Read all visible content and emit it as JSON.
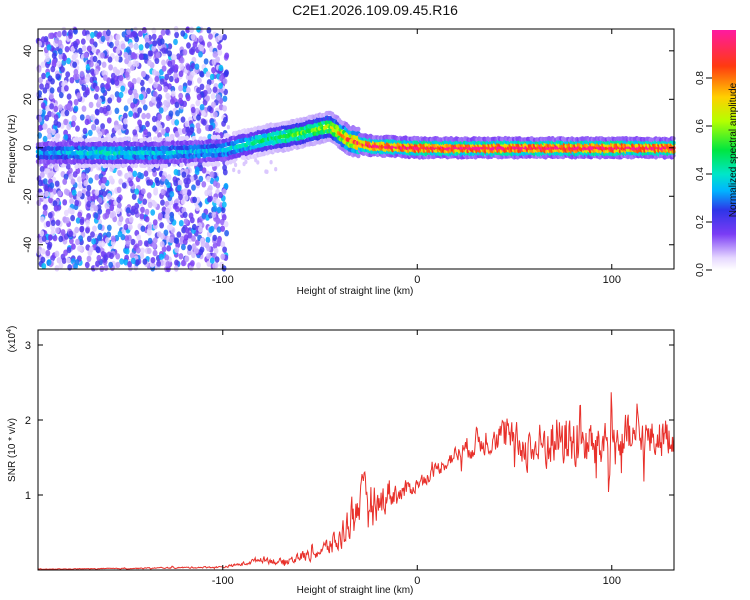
{
  "figure": {
    "title": "C2E1.2026.109.09.45.R16"
  },
  "chart_data": [
    {
      "type": "heatmap",
      "title": "C2E1.2026.109.09.45.R16",
      "xlabel": "Height of straight line (km)",
      "ylabel": "Frequency (Hz)",
      "xlim": [
        -195,
        132
      ],
      "ylim": [
        -50,
        49
      ],
      "x_ticks": [
        -100,
        0,
        100
      ],
      "y_ticks": [
        -40,
        -20,
        0,
        20,
        40
      ],
      "colorbar": {
        "label": "Normalized spectral amplitude",
        "range": [
          0.0,
          1.0
        ],
        "ticks": [
          0.0,
          0.2,
          0.4,
          0.6,
          0.8
        ],
        "tick_labels": [
          "0.0",
          "0.2",
          "0.4",
          "0.6",
          "0.8"
        ]
      },
      "ridge": {
        "x": [
          -195,
          -160,
          -130,
          -100,
          -80,
          -60,
          -45,
          -35,
          -25,
          0,
          50,
          100,
          132
        ],
        "frequency": [
          -2,
          -2,
          -2,
          -1,
          3,
          6,
          9,
          3,
          1,
          0,
          0,
          0,
          0
        ],
        "peak_amplitude": [
          0.3,
          0.4,
          0.35,
          0.35,
          0.45,
          0.55,
          0.6,
          0.8,
          0.9,
          0.95,
          0.95,
          0.95,
          0.95
        ]
      },
      "noise_region_x": [
        -195,
        -100
      ]
    },
    {
      "type": "line",
      "xlabel": "Height of straight line (km)",
      "ylabel": "SNR (10 * v/v)",
      "scale_note": "(x10",
      "scale_exp": "4",
      "scale_close": ")",
      "xlim": [
        -195,
        132
      ],
      "ylim": [
        0,
        3.2
      ],
      "x_ticks": [
        -100,
        0,
        100
      ],
      "y_ticks": [
        1,
        2,
        3
      ],
      "color": "#e8302a",
      "series": [
        {
          "x": [
            -195,
            -150,
            -100,
            -90,
            -80,
            -70,
            -60,
            -50,
            -40,
            -35,
            -30,
            -25,
            -20,
            -15,
            -10,
            0,
            10,
            20,
            30,
            40,
            50,
            60,
            70,
            80,
            90,
            100,
            110,
            120,
            132
          ],
          "mean": [
            0.01,
            0.02,
            0.04,
            0.08,
            0.15,
            0.1,
            0.18,
            0.25,
            0.4,
            0.7,
            0.9,
            1.0,
            0.85,
            1.05,
            1.0,
            1.15,
            1.35,
            1.55,
            1.7,
            1.8,
            1.7,
            1.6,
            1.75,
            1.7,
            1.65,
            1.7,
            1.75,
            1.75,
            1.8
          ],
          "amp": [
            0.005,
            0.01,
            0.02,
            0.04,
            0.07,
            0.08,
            0.12,
            0.15,
            0.3,
            0.4,
            0.45,
            0.5,
            0.35,
            0.35,
            0.25,
            0.15,
            0.15,
            0.2,
            0.3,
            0.35,
            0.4,
            0.5,
            0.6,
            0.65,
            0.55,
            0.6,
            0.5,
            0.45,
            0.4
          ]
        }
      ]
    }
  ]
}
